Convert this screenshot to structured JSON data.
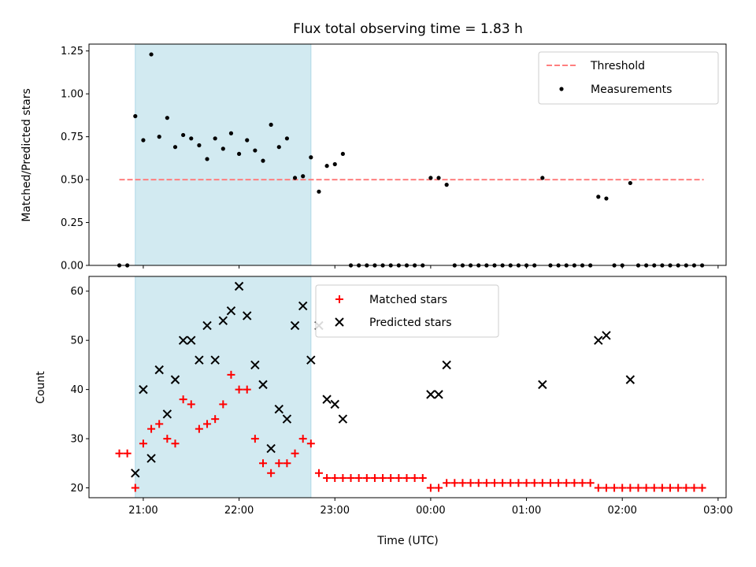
{
  "title": "Flux total observing time = 1.83 h",
  "xlabel": "Time (UTC)",
  "colors": {
    "shade": "#add8e6",
    "threshold": "#ff7f7f",
    "measurement": "#000000",
    "matched": "#ff0000",
    "predicted": "#000000"
  },
  "chart_data": [
    {
      "type": "scatter",
      "ylabel": "Matched/Predicted stars",
      "xlim": [
        "20:26",
        "03:05"
      ],
      "ylim": [
        0,
        1.29
      ],
      "yticks": [
        "0.00",
        "0.25",
        "0.50",
        "0.75",
        "1.00",
        "1.25"
      ],
      "xticks": [
        "21:00",
        "22:00",
        "23:00",
        "00:00",
        "01:00",
        "02:00",
        "03:00"
      ],
      "shaded_span": [
        "20:55",
        "22:45"
      ],
      "threshold": {
        "name": "Threshold",
        "y": 0.5,
        "x_range": [
          "20:45",
          "02:51"
        ]
      },
      "legend_placement": "upper right",
      "series": [
        {
          "name": "Measurements",
          "points": [
            [
              "20:45",
              0
            ],
            [
              "20:50",
              0
            ],
            [
              "20:55",
              0.87
            ],
            [
              "21:00",
              0.73
            ],
            [
              "21:05",
              1.23
            ],
            [
              "21:10",
              0.75
            ],
            [
              "21:15",
              0.86
            ],
            [
              "21:20",
              0.69
            ],
            [
              "21:25",
              0.76
            ],
            [
              "21:30",
              0.74
            ],
            [
              "21:35",
              0.7
            ],
            [
              "21:40",
              0.62
            ],
            [
              "21:45",
              0.74
            ],
            [
              "21:50",
              0.68
            ],
            [
              "21:55",
              0.77
            ],
            [
              "22:00",
              0.65
            ],
            [
              "22:05",
              0.73
            ],
            [
              "22:10",
              0.67
            ],
            [
              "22:15",
              0.61
            ],
            [
              "22:20",
              0.82
            ],
            [
              "22:25",
              0.69
            ],
            [
              "22:30",
              0.74
            ],
            [
              "22:35",
              0.51
            ],
            [
              "22:40",
              0.52
            ],
            [
              "22:45",
              0.63
            ],
            [
              "22:50",
              0.43
            ],
            [
              "22:55",
              0.58
            ],
            [
              "23:00",
              0.59
            ],
            [
              "23:05",
              0.65
            ],
            [
              "23:10",
              0
            ],
            [
              "23:15",
              0
            ],
            [
              "23:20",
              0
            ],
            [
              "23:25",
              0
            ],
            [
              "23:30",
              0
            ],
            [
              "23:35",
              0
            ],
            [
              "23:40",
              0
            ],
            [
              "23:45",
              0
            ],
            [
              "23:50",
              0
            ],
            [
              "23:55",
              0
            ],
            [
              "00:00",
              0.51
            ],
            [
              "00:05",
              0.51
            ],
            [
              "00:10",
              0.47
            ],
            [
              "00:15",
              0
            ],
            [
              "00:20",
              0
            ],
            [
              "00:25",
              0
            ],
            [
              "00:30",
              0
            ],
            [
              "00:35",
              0
            ],
            [
              "00:40",
              0
            ],
            [
              "00:45",
              0
            ],
            [
              "00:50",
              0
            ],
            [
              "00:55",
              0
            ],
            [
              "01:00",
              0
            ],
            [
              "01:05",
              0
            ],
            [
              "01:10",
              0.51
            ],
            [
              "01:15",
              0
            ],
            [
              "01:20",
              0
            ],
            [
              "01:25",
              0
            ],
            [
              "01:30",
              0
            ],
            [
              "01:35",
              0
            ],
            [
              "01:40",
              0
            ],
            [
              "01:45",
              0.4
            ],
            [
              "01:50",
              0.39
            ],
            [
              "01:55",
              0
            ],
            [
              "02:00",
              0
            ],
            [
              "02:05",
              0.48
            ],
            [
              "02:10",
              0
            ],
            [
              "02:15",
              0
            ],
            [
              "02:20",
              0
            ],
            [
              "02:25",
              0
            ],
            [
              "02:30",
              0
            ],
            [
              "02:35",
              0
            ],
            [
              "02:40",
              0
            ],
            [
              "02:45",
              0
            ],
            [
              "02:50",
              0
            ]
          ]
        }
      ]
    },
    {
      "type": "scatter",
      "ylabel": "Count",
      "xlim": [
        "20:26",
        "03:05"
      ],
      "ylim": [
        18,
        63
      ],
      "yticks": [
        "20",
        "30",
        "40",
        "50",
        "60"
      ],
      "xticks": [
        "21:00",
        "22:00",
        "23:00",
        "00:00",
        "01:00",
        "02:00",
        "03:00"
      ],
      "shaded_span": [
        "20:55",
        "22:45"
      ],
      "legend_placement": "upper center",
      "series": [
        {
          "name": "Matched stars",
          "marker": "plus",
          "points": [
            [
              "20:45",
              27
            ],
            [
              "20:50",
              27
            ],
            [
              "20:55",
              20
            ],
            [
              "21:00",
              29
            ],
            [
              "21:05",
              32
            ],
            [
              "21:10",
              33
            ],
            [
              "21:15",
              30
            ],
            [
              "21:20",
              29
            ],
            [
              "21:25",
              38
            ],
            [
              "21:30",
              37
            ],
            [
              "21:35",
              32
            ],
            [
              "21:40",
              33
            ],
            [
              "21:45",
              34
            ],
            [
              "21:50",
              37
            ],
            [
              "21:55",
              43
            ],
            [
              "22:00",
              40
            ],
            [
              "22:05",
              40
            ],
            [
              "22:10",
              30
            ],
            [
              "22:15",
              25
            ],
            [
              "22:20",
              23
            ],
            [
              "22:25",
              25
            ],
            [
              "22:30",
              25
            ],
            [
              "22:35",
              27
            ],
            [
              "22:40",
              30
            ],
            [
              "22:45",
              29
            ],
            [
              "22:50",
              23
            ],
            [
              "22:55",
              22
            ],
            [
              "23:00",
              22
            ],
            [
              "23:05",
              22
            ],
            [
              "23:10",
              22
            ],
            [
              "23:15",
              22
            ],
            [
              "23:20",
              22
            ],
            [
              "23:25",
              22
            ],
            [
              "23:30",
              22
            ],
            [
              "23:35",
              22
            ],
            [
              "23:40",
              22
            ],
            [
              "23:45",
              22
            ],
            [
              "23:50",
              22
            ],
            [
              "23:55",
              22
            ],
            [
              "00:00",
              20
            ],
            [
              "00:05",
              20
            ],
            [
              "00:10",
              21
            ],
            [
              "00:15",
              21
            ],
            [
              "00:20",
              21
            ],
            [
              "00:25",
              21
            ],
            [
              "00:30",
              21
            ],
            [
              "00:35",
              21
            ],
            [
              "00:40",
              21
            ],
            [
              "00:45",
              21
            ],
            [
              "00:50",
              21
            ],
            [
              "00:55",
              21
            ],
            [
              "01:00",
              21
            ],
            [
              "01:05",
              21
            ],
            [
              "01:10",
              21
            ],
            [
              "01:15",
              21
            ],
            [
              "01:20",
              21
            ],
            [
              "01:25",
              21
            ],
            [
              "01:30",
              21
            ],
            [
              "01:35",
              21
            ],
            [
              "01:40",
              21
            ],
            [
              "01:45",
              20
            ],
            [
              "01:50",
              20
            ],
            [
              "01:55",
              20
            ],
            [
              "02:00",
              20
            ],
            [
              "02:05",
              20
            ],
            [
              "02:10",
              20
            ],
            [
              "02:15",
              20
            ],
            [
              "02:20",
              20
            ],
            [
              "02:25",
              20
            ],
            [
              "02:30",
              20
            ],
            [
              "02:35",
              20
            ],
            [
              "02:40",
              20
            ],
            [
              "02:45",
              20
            ],
            [
              "02:50",
              20
            ]
          ]
        },
        {
          "name": "Predicted stars",
          "marker": "x",
          "points": [
            [
              "20:55",
              23
            ],
            [
              "21:00",
              40
            ],
            [
              "21:05",
              26
            ],
            [
              "21:10",
              44
            ],
            [
              "21:15",
              35
            ],
            [
              "21:20",
              42
            ],
            [
              "21:25",
              50
            ],
            [
              "21:30",
              50
            ],
            [
              "21:35",
              46
            ],
            [
              "21:40",
              53
            ],
            [
              "21:45",
              46
            ],
            [
              "21:50",
              54
            ],
            [
              "21:55",
              56
            ],
            [
              "22:00",
              61
            ],
            [
              "22:05",
              55
            ],
            [
              "22:10",
              45
            ],
            [
              "22:15",
              41
            ],
            [
              "22:20",
              28
            ],
            [
              "22:25",
              36
            ],
            [
              "22:30",
              34
            ],
            [
              "22:35",
              53
            ],
            [
              "22:40",
              57
            ],
            [
              "22:45",
              46
            ],
            [
              "22:50",
              53
            ],
            [
              "22:55",
              38
            ],
            [
              "23:00",
              37
            ],
            [
              "23:05",
              34
            ],
            [
              "00:00",
              39
            ],
            [
              "00:05",
              39
            ],
            [
              "00:10",
              45
            ],
            [
              "01:10",
              41
            ],
            [
              "01:45",
              50
            ],
            [
              "01:50",
              51
            ],
            [
              "02:05",
              42
            ]
          ]
        }
      ]
    }
  ]
}
